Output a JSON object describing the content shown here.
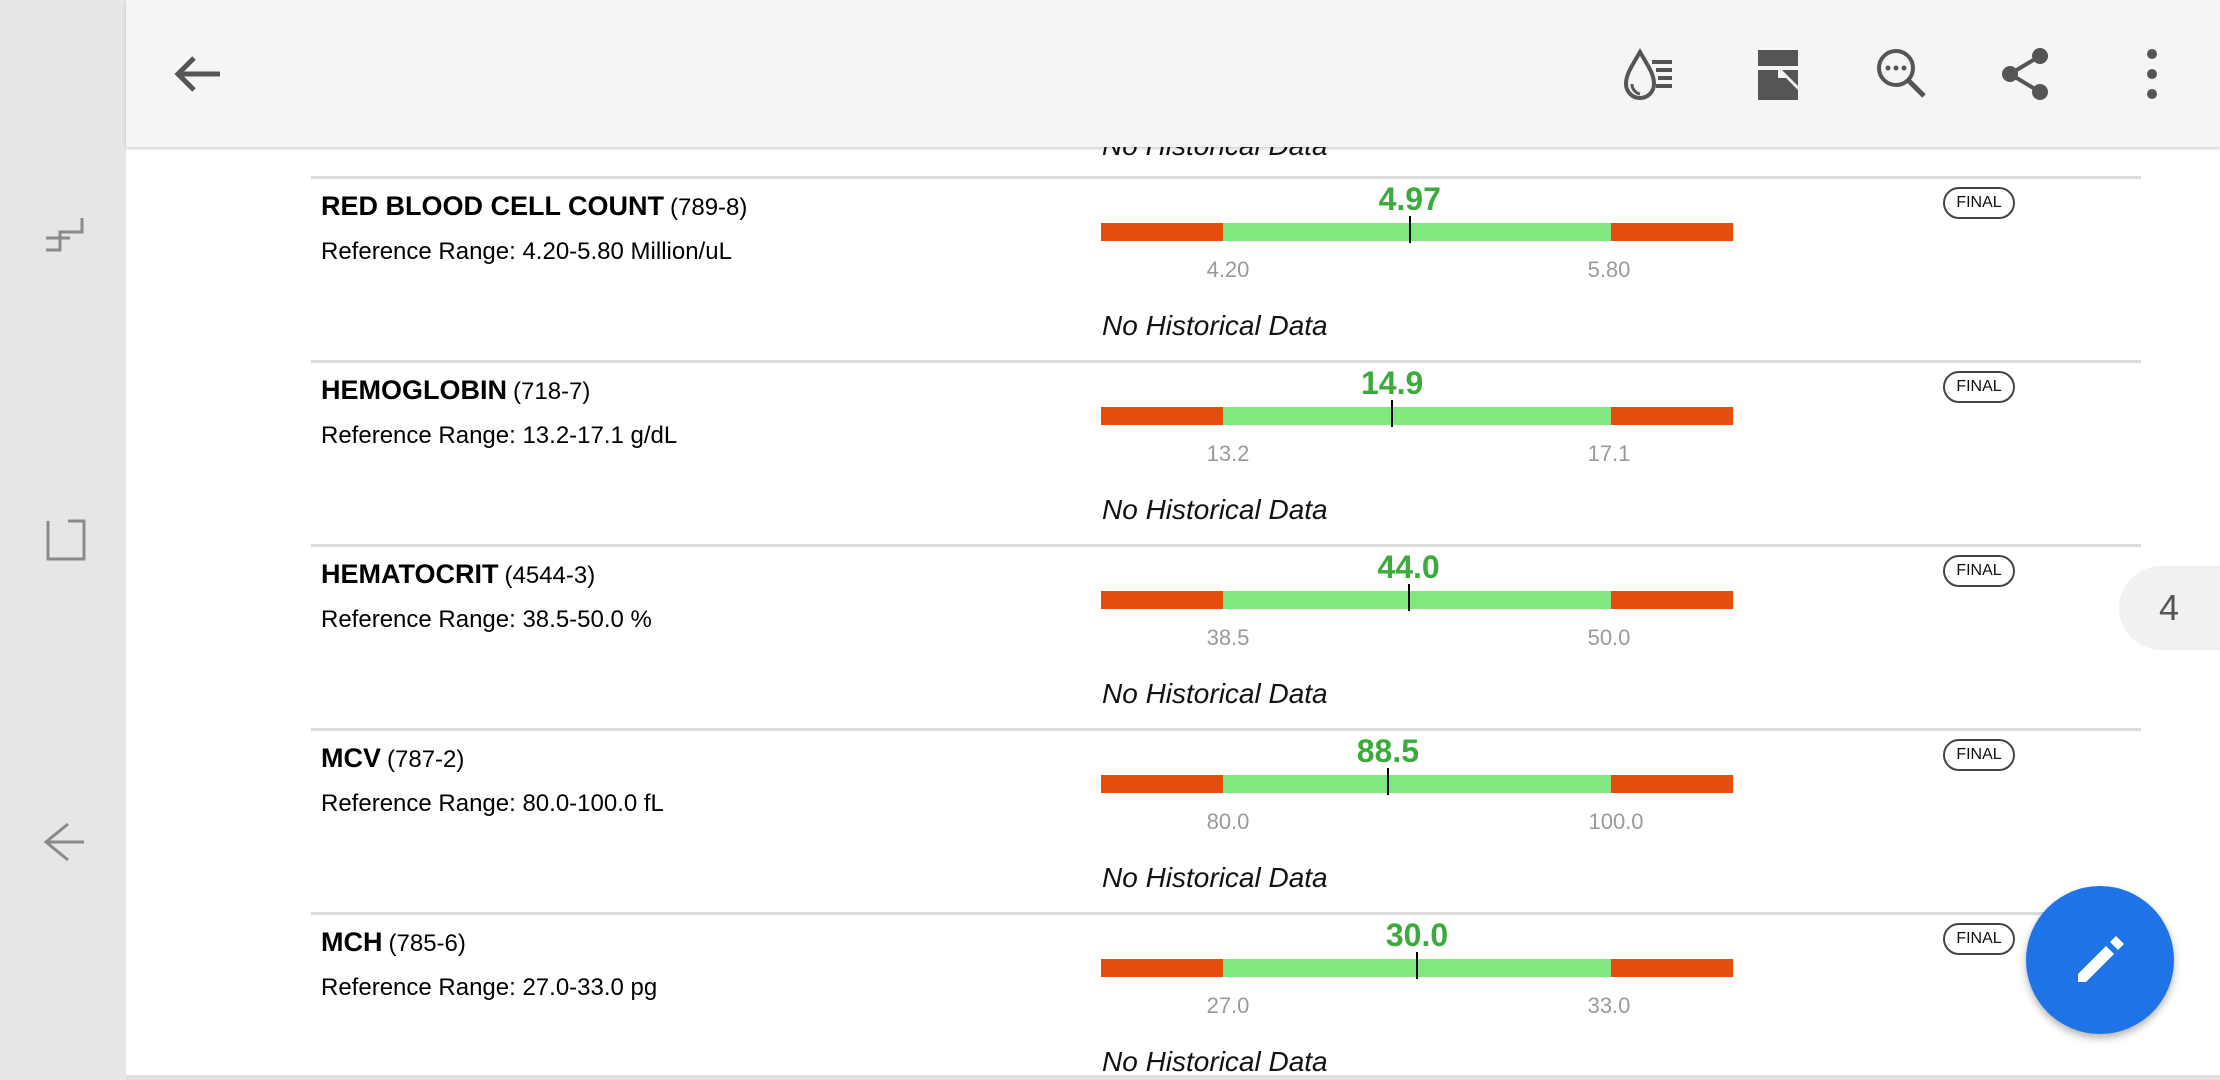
{
  "system_nav": {
    "icons": [
      "recent-apps-icon",
      "home-icon",
      "back-icon"
    ]
  },
  "toolbar": {
    "back_icon": "arrow-back-icon",
    "actions": [
      "lab-results-icon",
      "document-icon",
      "search-icon",
      "share-icon",
      "more-vert-icon"
    ]
  },
  "top_partial": {
    "history": "No Historical Data"
  },
  "results": [
    {
      "name": "RED BLOOD CELL COUNT",
      "code": "(789-8)",
      "reference": "Reference Range: 4.20-5.80 Million/uL",
      "status": "FINAL",
      "value": "4.97",
      "low": "4.20",
      "high": "5.80",
      "low_num": 4.2,
      "high_num": 5.8,
      "value_num": 4.97,
      "history": "No Historical Data"
    },
    {
      "name": "HEMOGLOBIN",
      "code": "(718-7)",
      "reference": "Reference Range: 13.2-17.1 g/dL",
      "status": "FINAL",
      "value": "14.9",
      "low": "13.2",
      "high": "17.1",
      "low_num": 13.2,
      "high_num": 17.1,
      "value_num": 14.9,
      "history": "No Historical Data"
    },
    {
      "name": "HEMATOCRIT",
      "code": "(4544-3)",
      "reference": "Reference Range: 38.5-50.0 %",
      "status": "FINAL",
      "value": "44.0",
      "low": "38.5",
      "high": "50.0",
      "low_num": 38.5,
      "high_num": 50.0,
      "value_num": 44.0,
      "history": "No Historical Data"
    },
    {
      "name": "MCV",
      "code": "(787-2)",
      "reference": "Reference Range: 80.0-100.0 fL",
      "status": "FINAL",
      "value": "88.5",
      "low": "80.0",
      "high": "100.0",
      "low_num": 80.0,
      "high_num": 100.0,
      "value_num": 88.5,
      "history": "No Historical Data"
    },
    {
      "name": "MCH",
      "code": "(785-6)",
      "reference": "Reference Range: 27.0-33.0 pg",
      "status": "FINAL",
      "value": "30.0",
      "low": "27.0",
      "high": "33.0",
      "low_num": 27.0,
      "high_num": 33.0,
      "value_num": 30.0,
      "history": "No Historical Data"
    }
  ],
  "page_indicator": "4",
  "fab": {
    "icon": "edit-icon"
  },
  "colors": {
    "out_of_range": "#e44d0c",
    "in_range": "#80e87c",
    "value_text": "#3bab3b",
    "fab": "#1e74e6"
  }
}
